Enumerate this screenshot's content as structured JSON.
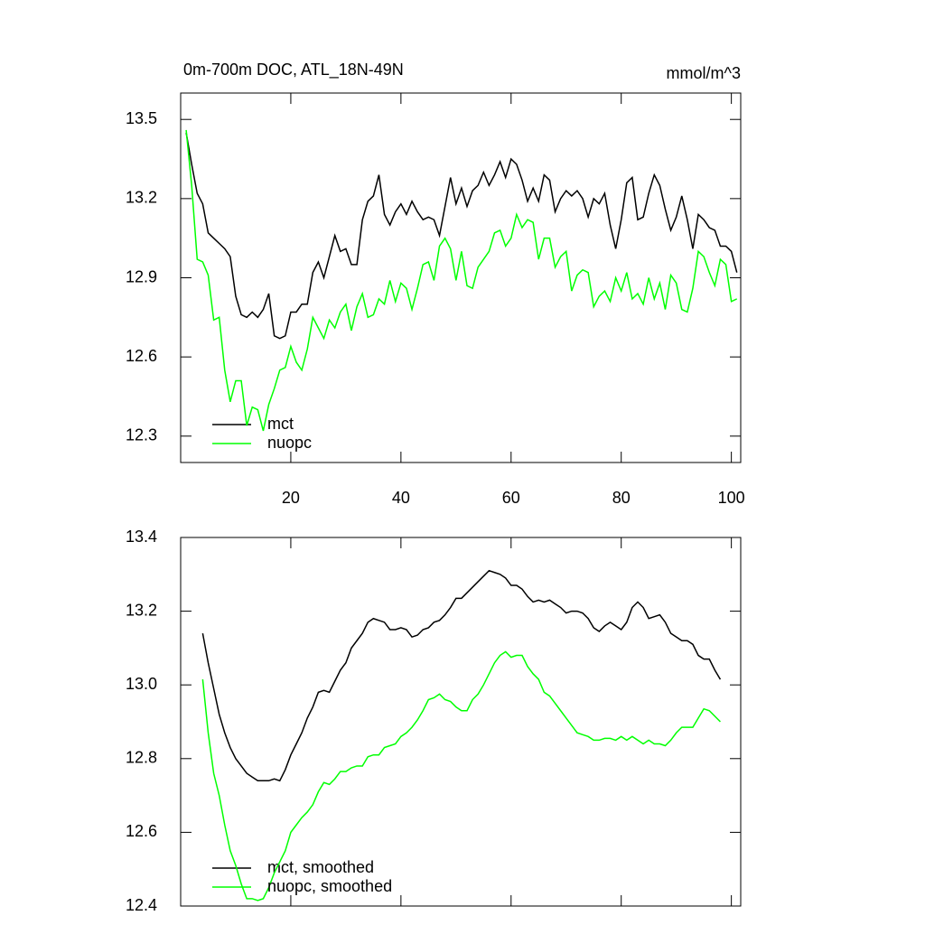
{
  "chart_data": [
    {
      "type": "line",
      "title": "0m-700m DOC, ATL_18N-49N",
      "subtitle": "mmol/m^3",
      "x": [
        1,
        2,
        3,
        4,
        5,
        6,
        7,
        8,
        9,
        10,
        11,
        12,
        13,
        14,
        15,
        16,
        17,
        18,
        19,
        20,
        21,
        22,
        23,
        24,
        25,
        26,
        27,
        28,
        29,
        30,
        31,
        32,
        33,
        34,
        35,
        36,
        37,
        38,
        39,
        40,
        41,
        42,
        43,
        44,
        45,
        46,
        47,
        48,
        49,
        50,
        51,
        52,
        53,
        54,
        55,
        56,
        57,
        58,
        59,
        60,
        61,
        62,
        63,
        64,
        65,
        66,
        67,
        68,
        69,
        70,
        71,
        72,
        73,
        74,
        75,
        76,
        77,
        78,
        79,
        80,
        81,
        82,
        83,
        84,
        85,
        86,
        87,
        88,
        89,
        90,
        91,
        92,
        93,
        94,
        95,
        96,
        97,
        98,
        99,
        100,
        101
      ],
      "series": [
        {
          "name": "mct",
          "color": "#000000",
          "values": [
            13.45,
            13.33,
            13.22,
            13.18,
            13.07,
            13.05,
            13.03,
            13.01,
            12.98,
            12.83,
            12.76,
            12.75,
            12.77,
            12.75,
            12.78,
            12.84,
            12.68,
            12.67,
            12.68,
            12.77,
            12.77,
            12.8,
            12.8,
            12.92,
            12.96,
            12.9,
            12.98,
            13.06,
            13.0,
            13.01,
            12.95,
            12.95,
            13.12,
            13.19,
            13.21,
            13.29,
            13.14,
            13.1,
            13.15,
            13.18,
            13.14,
            13.19,
            13.15,
            13.12,
            13.13,
            13.12,
            13.06,
            13.17,
            13.28,
            13.18,
            13.24,
            13.17,
            13.23,
            13.25,
            13.3,
            13.25,
            13.29,
            13.34,
            13.28,
            13.35,
            13.33,
            13.27,
            13.19,
            13.24,
            13.19,
            13.29,
            13.27,
            13.15,
            13.2,
            13.23,
            13.21,
            13.23,
            13.2,
            13.13,
            13.2,
            13.18,
            13.22,
            13.1,
            13.01,
            13.12,
            13.26,
            13.28,
            13.12,
            13.13,
            13.22,
            13.29,
            13.25,
            13.16,
            13.08,
            13.13,
            13.21,
            13.12,
            13.01,
            13.14,
            13.12,
            13.09,
            13.08,
            13.02,
            13.02,
            13.0,
            12.92
          ]
        },
        {
          "name": "nuopc",
          "color": "#00ff00",
          "values": [
            13.46,
            13.25,
            12.97,
            12.96,
            12.91,
            12.74,
            12.75,
            12.55,
            12.43,
            12.51,
            12.51,
            12.34,
            12.41,
            12.4,
            12.32,
            12.42,
            12.48,
            12.55,
            12.56,
            12.64,
            12.58,
            12.55,
            12.63,
            12.75,
            12.71,
            12.67,
            12.74,
            12.71,
            12.77,
            12.8,
            12.7,
            12.79,
            12.84,
            12.75,
            12.76,
            12.82,
            12.8,
            12.89,
            12.81,
            12.88,
            12.86,
            12.78,
            12.86,
            12.95,
            12.96,
            12.89,
            13.02,
            13.05,
            13.01,
            12.89,
            13.0,
            12.87,
            12.86,
            12.94,
            12.97,
            13.0,
            13.07,
            13.08,
            13.02,
            13.05,
            13.14,
            13.09,
            13.12,
            13.11,
            12.97,
            13.05,
            13.05,
            12.94,
            12.98,
            13.0,
            12.85,
            12.91,
            12.93,
            12.92,
            12.79,
            12.83,
            12.85,
            12.81,
            12.9,
            12.85,
            12.92,
            12.82,
            12.84,
            12.8,
            12.9,
            12.82,
            12.88,
            12.78,
            12.91,
            12.88,
            12.78,
            12.77,
            12.86,
            13.0,
            12.98,
            12.92,
            12.87,
            12.97,
            12.95,
            12.81,
            12.82
          ]
        }
      ],
      "xlim": [
        0,
        101.7
      ],
      "xticks": [
        20,
        40,
        60,
        80,
        100
      ],
      "ylim": [
        12.2,
        13.6
      ],
      "yticks": [
        12.3,
        12.6,
        12.9,
        13.2,
        13.5
      ],
      "legend": "lower left"
    },
    {
      "type": "line",
      "x": [
        4,
        5,
        6,
        7,
        8,
        9,
        10,
        11,
        12,
        13,
        14,
        15,
        16,
        17,
        18,
        19,
        20,
        21,
        22,
        23,
        24,
        25,
        26,
        27,
        28,
        29,
        30,
        31,
        32,
        33,
        34,
        35,
        36,
        37,
        38,
        39,
        40,
        41,
        42,
        43,
        44,
        45,
        46,
        47,
        48,
        49,
        50,
        51,
        52,
        53,
        54,
        55,
        56,
        57,
        58,
        59,
        60,
        61,
        62,
        63,
        64,
        65,
        66,
        67,
        68,
        69,
        70,
        71,
        72,
        73,
        74,
        75,
        76,
        77,
        78,
        79,
        80,
        81,
        82,
        83,
        84,
        85,
        86,
        87,
        88,
        89,
        90,
        91,
        92,
        93,
        94,
        95,
        96,
        97,
        98
      ],
      "series": [
        {
          "name": "mct, smoothed",
          "color": "#000000",
          "values": [
            13.14,
            13.06,
            12.99,
            12.92,
            12.87,
            12.83,
            12.8,
            12.78,
            12.76,
            12.75,
            12.74,
            12.74,
            12.74,
            12.745,
            12.74,
            12.77,
            12.81,
            12.84,
            12.87,
            12.91,
            12.94,
            12.98,
            12.985,
            12.98,
            13.01,
            13.04,
            13.06,
            13.1,
            13.12,
            13.14,
            13.17,
            13.18,
            13.175,
            13.17,
            13.15,
            13.15,
            13.155,
            13.15,
            13.13,
            13.135,
            13.15,
            13.155,
            13.17,
            13.175,
            13.19,
            13.21,
            13.235,
            13.235,
            13.25,
            13.265,
            13.28,
            13.295,
            13.31,
            13.305,
            13.3,
            13.29,
            13.27,
            13.27,
            13.26,
            13.24,
            13.225,
            13.23,
            13.225,
            13.23,
            13.22,
            13.21,
            13.195,
            13.2,
            13.2,
            13.195,
            13.18,
            13.155,
            13.145,
            13.16,
            13.17,
            13.16,
            13.15,
            13.17,
            13.21,
            13.225,
            13.21,
            13.18,
            13.185,
            13.19,
            13.17,
            13.14,
            13.13,
            13.12,
            13.12,
            13.11,
            13.08,
            13.07,
            13.07,
            13.04,
            13.015
          ]
        },
        {
          "name": "nuopc, smoothed",
          "color": "#00ff00",
          "values": [
            13.015,
            12.87,
            12.76,
            12.7,
            12.62,
            12.55,
            12.51,
            12.46,
            12.42,
            12.42,
            12.415,
            12.42,
            12.45,
            12.49,
            12.52,
            12.55,
            12.6,
            12.62,
            12.64,
            12.655,
            12.675,
            12.71,
            12.735,
            12.73,
            12.745,
            12.765,
            12.765,
            12.775,
            12.78,
            12.78,
            12.805,
            12.81,
            12.81,
            12.83,
            12.835,
            12.84,
            12.86,
            12.87,
            12.885,
            12.905,
            12.93,
            12.96,
            12.965,
            12.975,
            12.96,
            12.955,
            12.94,
            12.93,
            12.93,
            12.96,
            12.975,
            13.0,
            13.03,
            13.06,
            13.08,
            13.09,
            13.075,
            13.08,
            13.08,
            13.05,
            13.03,
            13.015,
            12.98,
            12.97,
            12.95,
            12.93,
            12.91,
            12.89,
            12.87,
            12.865,
            12.86,
            12.85,
            12.85,
            12.855,
            12.855,
            12.85,
            12.86,
            12.85,
            12.86,
            12.85,
            12.84,
            12.85,
            12.84,
            12.84,
            12.835,
            12.85,
            12.87,
            12.885,
            12.885,
            12.885,
            12.91,
            12.935,
            12.93,
            12.915,
            12.9
          ]
        }
      ],
      "xlim": [
        0,
        101.7
      ],
      "xticks": [
        20,
        40,
        60,
        80,
        100
      ],
      "ylim": [
        12.4,
        13.4
      ],
      "yticks": [
        12.4,
        12.6,
        12.8,
        {
          "value": 13,
          "label": "13.0"
        },
        13.2,
        13.4
      ],
      "legend": "lower left"
    }
  ]
}
